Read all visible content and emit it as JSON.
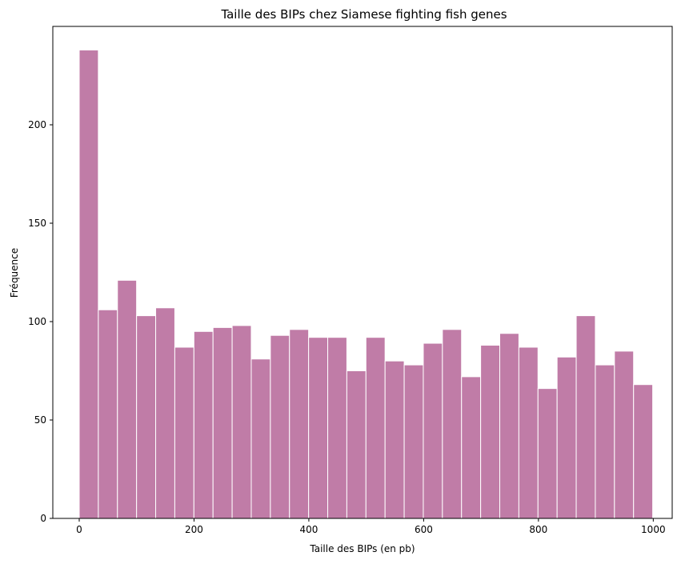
{
  "chart_data": {
    "type": "bar",
    "title": "Taille des BIPs chez Siamese fighting fish genes",
    "xlabel": "Taille des BIPs (en pb)",
    "ylabel": "Fréquence",
    "xlim": [
      -46,
      1033
    ],
    "ylim": [
      0,
      250
    ],
    "x_ticks": [
      0,
      200,
      400,
      600,
      800,
      1000
    ],
    "y_ticks": [
      0,
      50,
      100,
      150,
      200
    ],
    "bin_start": 0,
    "bin_width": 33.3,
    "values": [
      238,
      106,
      121,
      103,
      107,
      87,
      95,
      97,
      98,
      81,
      93,
      96,
      92,
      92,
      75,
      92,
      80,
      78,
      89,
      96,
      72,
      88,
      94,
      87,
      66,
      82,
      103,
      78,
      85,
      68
    ],
    "bar_color": "#c07ca7",
    "grid": false,
    "legend": "none"
  }
}
